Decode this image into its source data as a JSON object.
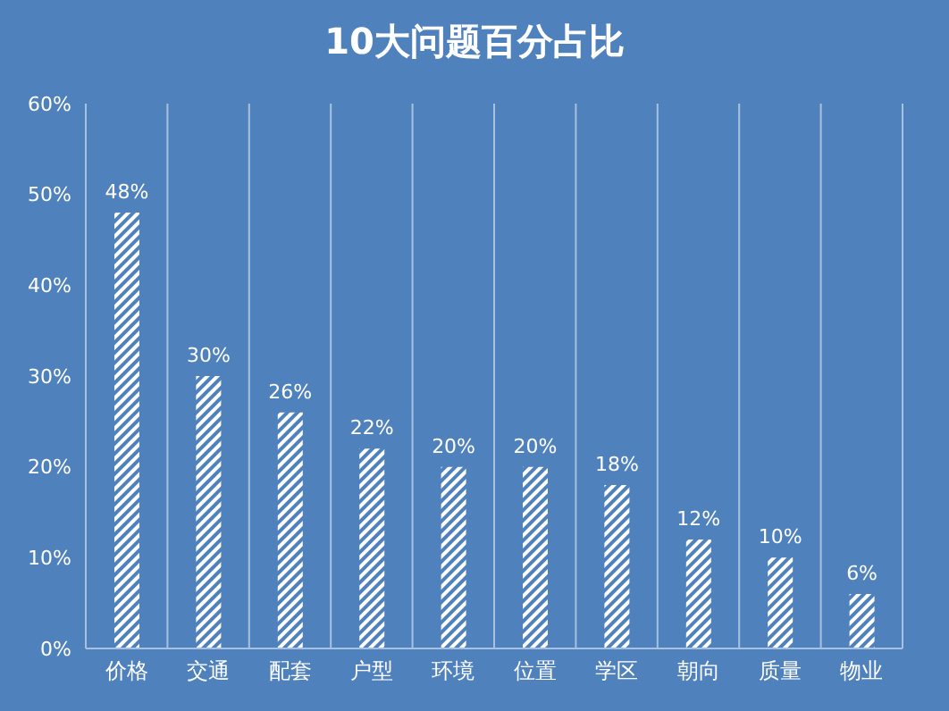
{
  "chart_data": {
    "type": "bar",
    "title": "10大问题百分占比",
    "categories": [
      "价格",
      "交通",
      "配套",
      "户型",
      "环境",
      "位置",
      "学区",
      "朝向",
      "质量",
      "物业"
    ],
    "values": [
      48,
      30,
      26,
      22,
      20,
      20,
      18,
      12,
      10,
      6
    ],
    "value_labels": [
      "48%",
      "30%",
      "26%",
      "22%",
      "20%",
      "20%",
      "18%",
      "12%",
      "10%",
      "6%"
    ],
    "color": "#ffffff",
    "ylim": [
      0,
      60
    ],
    "yticks": [
      {
        "value": 0,
        "label": "0%"
      },
      {
        "value": 10,
        "label": "10%"
      },
      {
        "value": 20,
        "label": "20%"
      },
      {
        "value": 30,
        "label": "30%"
      },
      {
        "value": 40,
        "label": "40%"
      },
      {
        "value": 50,
        "label": "50%"
      },
      {
        "value": 60,
        "label": "60%"
      }
    ],
    "grid": "x"
  }
}
